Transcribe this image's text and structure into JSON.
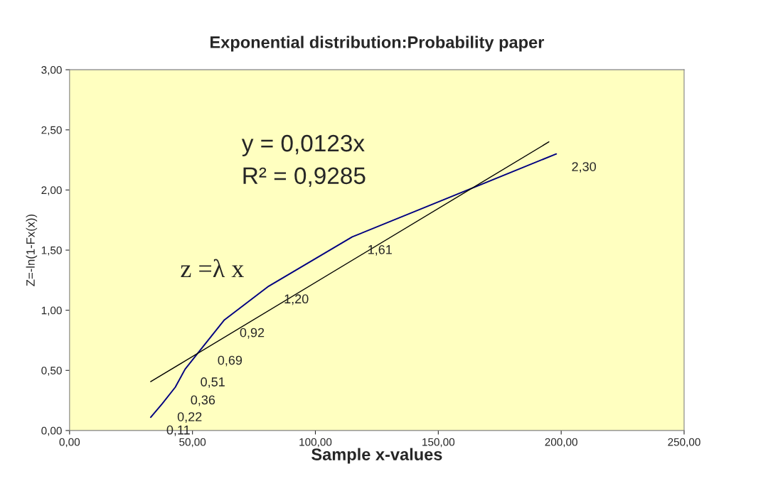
{
  "chart_data": {
    "type": "line",
    "title": "Exponential distribution:Probability paper",
    "xlabel": "Sample x-values",
    "ylabel": "Z=-ln(1-Fx(x))",
    "series": [
      {
        "color": "#000080",
        "x": [
          33,
          37.6,
          43,
          47,
          54,
          63,
          81,
          115,
          198
        ],
        "values": [
          0.11,
          0.22,
          0.36,
          0.51,
          0.69,
          0.92,
          1.2,
          1.61,
          2.3
        ],
        "value_labels": [
          "0,11",
          "0,22",
          "0,36",
          "0,51",
          "0,69",
          "0,92",
          "1,20",
          "1,61",
          "2,30"
        ]
      },
      {
        "color": "#000000",
        "x": [
          33,
          195
        ],
        "values": [
          0.406,
          2.4
        ]
      }
    ],
    "annotations": [
      "y = 0,0123x",
      "R² = 0,9285",
      "z =λ x"
    ],
    "xlim": [
      0,
      250
    ],
    "xticks": [
      {
        "value": 0,
        "label": "0,00"
      },
      {
        "value": 50,
        "label": "50,00"
      },
      {
        "value": 100,
        "label": "100,00"
      },
      {
        "value": 150,
        "label": "150,00"
      },
      {
        "value": 200,
        "label": "200,00"
      },
      {
        "value": 250,
        "label": "250,00"
      }
    ],
    "ylim": [
      0,
      3
    ],
    "yticks": [
      {
        "value": 0,
        "label": "0,00"
      },
      {
        "value": 0.5,
        "label": "0,50"
      },
      {
        "value": 1,
        "label": "1,00"
      },
      {
        "value": 1.5,
        "label": "1,50"
      },
      {
        "value": 2,
        "label": "2,00"
      },
      {
        "value": 2.5,
        "label": "2,50"
      },
      {
        "value": 3,
        "label": "3,00"
      }
    ],
    "grid": false,
    "legend": false
  }
}
